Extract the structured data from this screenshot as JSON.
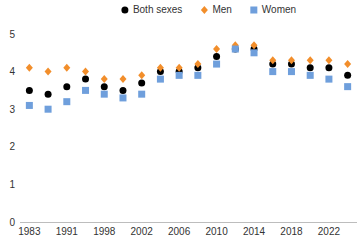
{
  "chart_data": {
    "type": "scatter",
    "categories": [
      "1983",
      null,
      "1991",
      null,
      "1998",
      null,
      "2002",
      null,
      "2006",
      null,
      "2010",
      null,
      "2014",
      null,
      "2018",
      null,
      "2022",
      null
    ],
    "series": [
      {
        "name": "Both sexes",
        "color": "#000000",
        "marker": "circle",
        "values": [
          3.5,
          3.4,
          3.6,
          3.8,
          3.6,
          3.5,
          3.7,
          4.0,
          4.0,
          4.1,
          4.4,
          4.6,
          4.6,
          4.2,
          4.2,
          4.1,
          4.1,
          3.9
        ]
      },
      {
        "name": "Men",
        "color": "#f28e2b",
        "marker": "diamond",
        "values": [
          4.1,
          4.0,
          4.1,
          4.0,
          3.8,
          3.8,
          3.9,
          4.1,
          4.1,
          4.2,
          4.6,
          4.7,
          4.7,
          4.3,
          4.3,
          4.3,
          4.3,
          4.2
        ]
      },
      {
        "name": "Women",
        "color": "#6f9fdc",
        "marker": "square",
        "values": [
          3.1,
          3.0,
          3.2,
          3.5,
          3.4,
          3.3,
          3.4,
          3.8,
          3.9,
          3.9,
          4.2,
          4.6,
          4.5,
          4.0,
          4.0,
          3.9,
          3.8,
          3.6
        ]
      }
    ],
    "ylim": [
      0,
      5
    ],
    "yticks": [
      0,
      1,
      2,
      3,
      4,
      5
    ],
    "grid": false,
    "legend": "top"
  }
}
